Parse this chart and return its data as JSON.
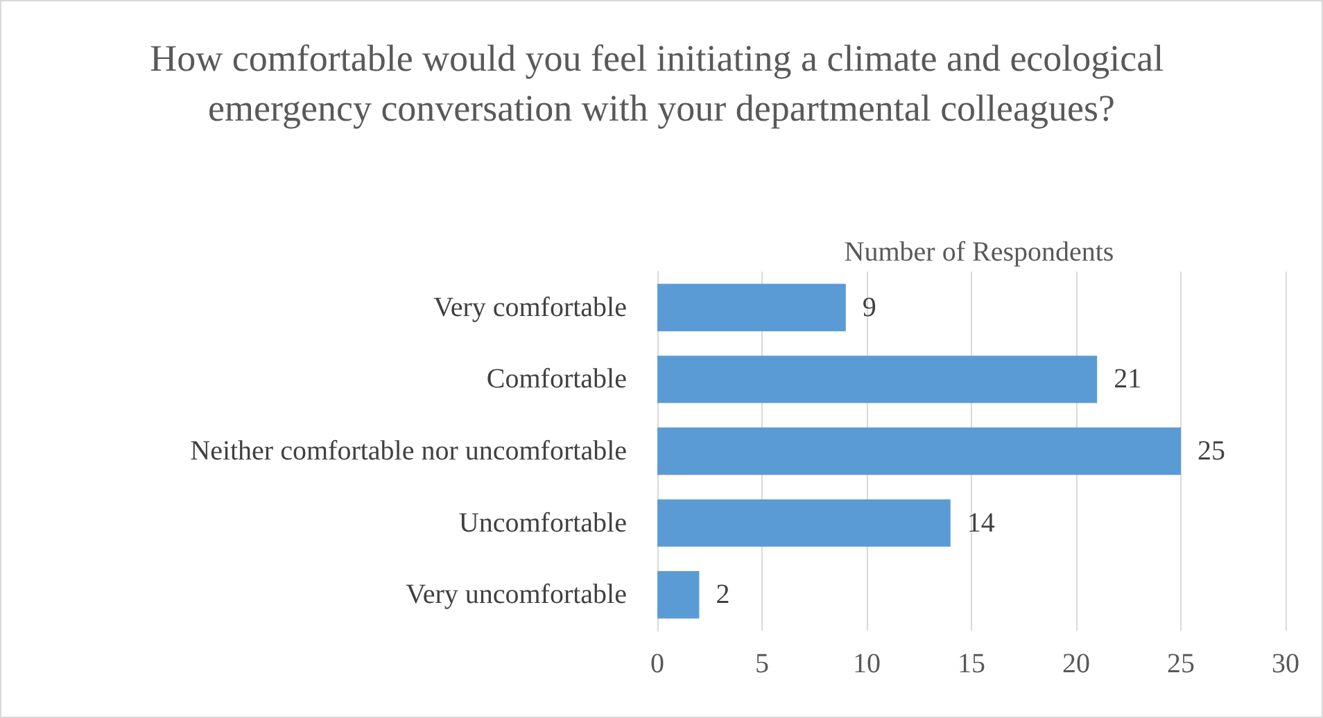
{
  "chart_data": {
    "type": "bar",
    "orientation": "horizontal",
    "title": "How comfortable would you feel initiating a climate and ecological emergency conversation with your departmental colleagues?",
    "xlabel": "Number of Respondents",
    "categories": [
      "Very comfortable",
      "Comfortable",
      "Neither comfortable nor uncomfortable",
      "Uncomfortable",
      "Very uncomfortable"
    ],
    "values": [
      9,
      21,
      25,
      14,
      2
    ],
    "color": "#5b9bd5",
    "xlim": [
      0,
      30
    ],
    "xticks": [
      0,
      5,
      10,
      15,
      20,
      25,
      30
    ],
    "grid": "x",
    "data_labels": true
  }
}
